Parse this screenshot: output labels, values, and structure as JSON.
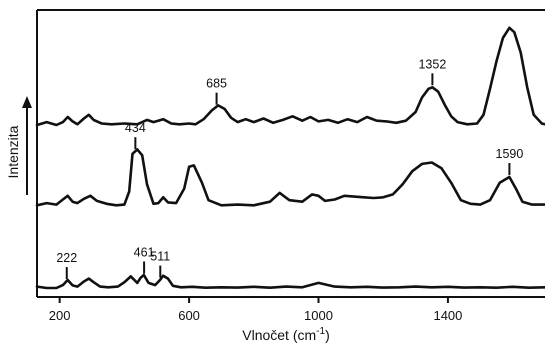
{
  "chart_data": {
    "type": "line",
    "xlabel": "Vlnočet (cm",
    "xlabel_sup": "-1",
    "xlabel_close": ")",
    "ylabel": "Intenzita",
    "xlim": [
      130,
      1700
    ],
    "x_ticks": [
      {
        "value": 200,
        "label": "200"
      },
      {
        "value": 600,
        "label": "600"
      },
      {
        "value": 1000,
        "label": "1000"
      },
      {
        "value": 1400,
        "label": "1400"
      }
    ],
    "grid": false,
    "colors": {
      "trace": "#111111",
      "axis": "#111111"
    },
    "series": [
      {
        "points": [
          [
            130,
            0.1
          ],
          [
            160,
            0.0
          ],
          [
            190,
            0.0
          ],
          [
            210,
            0.2
          ],
          [
            225,
            0.55
          ],
          [
            240,
            0.18
          ],
          [
            255,
            0.1
          ],
          [
            275,
            0.45
          ],
          [
            290,
            0.65
          ],
          [
            305,
            0.4
          ],
          [
            325,
            0.1
          ],
          [
            350,
            0.05
          ],
          [
            380,
            0.1
          ],
          [
            400,
            0.4
          ],
          [
            420,
            0.8
          ],
          [
            440,
            0.35
          ],
          [
            450,
            0.7
          ],
          [
            460,
            0.9
          ],
          [
            475,
            0.35
          ],
          [
            495,
            0.2
          ],
          [
            510,
            0.55
          ],
          [
            520,
            0.85
          ],
          [
            535,
            0.65
          ],
          [
            550,
            0.15
          ],
          [
            575,
            0.05
          ],
          [
            610,
            0.08
          ],
          [
            650,
            0.02
          ],
          [
            700,
            0.05
          ],
          [
            750,
            0.03
          ],
          [
            800,
            0.08
          ],
          [
            850,
            0.02
          ],
          [
            900,
            0.1
          ],
          [
            950,
            0.05
          ],
          [
            1000,
            0.35
          ],
          [
            1050,
            0.1
          ],
          [
            1100,
            0.05
          ],
          [
            1150,
            0.08
          ],
          [
            1200,
            0.03
          ],
          [
            1250,
            0.05
          ],
          [
            1300,
            0.1
          ],
          [
            1350,
            0.05
          ],
          [
            1400,
            0.08
          ],
          [
            1450,
            0.03
          ],
          [
            1500,
            0.05
          ],
          [
            1550,
            0.02
          ],
          [
            1600,
            0.08
          ],
          [
            1650,
            0.02
          ],
          [
            1700,
            0.05
          ]
        ],
        "peaks": [
          {
            "x": 222,
            "label": "222"
          },
          {
            "x": 461,
            "label": "461"
          },
          {
            "x": 511,
            "label": "511"
          }
        ]
      },
      {
        "points": [
          [
            130,
            0.05
          ],
          [
            160,
            0.2
          ],
          [
            190,
            0.1
          ],
          [
            210,
            0.45
          ],
          [
            225,
            0.7
          ],
          [
            240,
            0.3
          ],
          [
            255,
            0.2
          ],
          [
            275,
            0.5
          ],
          [
            295,
            0.7
          ],
          [
            315,
            0.35
          ],
          [
            345,
            0.15
          ],
          [
            375,
            0.05
          ],
          [
            400,
            0.1
          ],
          [
            415,
            1.0
          ],
          [
            425,
            3.6
          ],
          [
            440,
            3.9
          ],
          [
            455,
            3.5
          ],
          [
            470,
            1.5
          ],
          [
            490,
            0.15
          ],
          [
            505,
            0.2
          ],
          [
            520,
            0.6
          ],
          [
            535,
            0.25
          ],
          [
            560,
            0.2
          ],
          [
            585,
            1.2
          ],
          [
            600,
            2.7
          ],
          [
            615,
            2.8
          ],
          [
            640,
            1.6
          ],
          [
            660,
            0.4
          ],
          [
            700,
            0.05
          ],
          [
            750,
            0.1
          ],
          [
            800,
            0.05
          ],
          [
            850,
            0.3
          ],
          [
            880,
            0.9
          ],
          [
            910,
            0.4
          ],
          [
            950,
            0.3
          ],
          [
            980,
            0.8
          ],
          [
            1000,
            0.7
          ],
          [
            1020,
            0.35
          ],
          [
            1050,
            0.45
          ],
          [
            1080,
            0.7
          ],
          [
            1110,
            0.65
          ],
          [
            1140,
            0.6
          ],
          [
            1170,
            0.55
          ],
          [
            1200,
            0.6
          ],
          [
            1230,
            0.8
          ],
          [
            1260,
            1.5
          ],
          [
            1290,
            2.4
          ],
          [
            1320,
            2.9
          ],
          [
            1350,
            3.0
          ],
          [
            1380,
            2.6
          ],
          [
            1410,
            1.6
          ],
          [
            1440,
            0.4
          ],
          [
            1470,
            0.15
          ],
          [
            1500,
            0.1
          ],
          [
            1530,
            0.4
          ],
          [
            1560,
            1.6
          ],
          [
            1590,
            2.0
          ],
          [
            1610,
            1.2
          ],
          [
            1630,
            0.3
          ],
          [
            1660,
            0.1
          ],
          [
            1700,
            0.1
          ]
        ],
        "peaks": [
          {
            "x": 434,
            "label": "434"
          },
          {
            "x": 1590,
            "label": "1590"
          }
        ]
      },
      {
        "points": [
          [
            130,
            0.0
          ],
          [
            160,
            0.2
          ],
          [
            190,
            0.0
          ],
          [
            210,
            0.2
          ],
          [
            225,
            0.55
          ],
          [
            240,
            0.25
          ],
          [
            255,
            0.05
          ],
          [
            275,
            0.45
          ],
          [
            290,
            0.7
          ],
          [
            305,
            0.35
          ],
          [
            330,
            0.1
          ],
          [
            360,
            0.05
          ],
          [
            400,
            0.1
          ],
          [
            440,
            0.05
          ],
          [
            470,
            0.35
          ],
          [
            490,
            0.2
          ],
          [
            520,
            0.4
          ],
          [
            545,
            0.1
          ],
          [
            570,
            0.05
          ],
          [
            600,
            0.1
          ],
          [
            620,
            0.05
          ],
          [
            645,
            0.4
          ],
          [
            670,
            1.0
          ],
          [
            690,
            1.35
          ],
          [
            710,
            1.1
          ],
          [
            730,
            0.5
          ],
          [
            750,
            0.2
          ],
          [
            775,
            0.4
          ],
          [
            800,
            0.2
          ],
          [
            830,
            0.45
          ],
          [
            860,
            0.15
          ],
          [
            890,
            0.35
          ],
          [
            920,
            0.6
          ],
          [
            950,
            0.3
          ],
          [
            975,
            0.55
          ],
          [
            1000,
            0.25
          ],
          [
            1030,
            0.35
          ],
          [
            1060,
            0.15
          ],
          [
            1090,
            0.4
          ],
          [
            1120,
            0.2
          ],
          [
            1150,
            0.55
          ],
          [
            1180,
            0.3
          ],
          [
            1210,
            0.25
          ],
          [
            1240,
            0.15
          ],
          [
            1270,
            0.3
          ],
          [
            1300,
            0.9
          ],
          [
            1320,
            1.9
          ],
          [
            1340,
            2.5
          ],
          [
            1352,
            2.6
          ],
          [
            1370,
            2.3
          ],
          [
            1390,
            1.4
          ],
          [
            1410,
            0.6
          ],
          [
            1430,
            0.2
          ],
          [
            1460,
            0.05
          ],
          [
            1490,
            0.1
          ],
          [
            1510,
            0.7
          ],
          [
            1530,
            2.5
          ],
          [
            1550,
            4.4
          ],
          [
            1570,
            6.0
          ],
          [
            1590,
            6.7
          ],
          [
            1605,
            6.4
          ],
          [
            1625,
            5.0
          ],
          [
            1645,
            2.6
          ],
          [
            1665,
            0.7
          ],
          [
            1690,
            0.1
          ],
          [
            1700,
            0.05
          ]
        ],
        "peaks": [
          {
            "x": 685,
            "label": "685"
          },
          {
            "x": 1352,
            "label": "1352"
          }
        ]
      }
    ]
  }
}
